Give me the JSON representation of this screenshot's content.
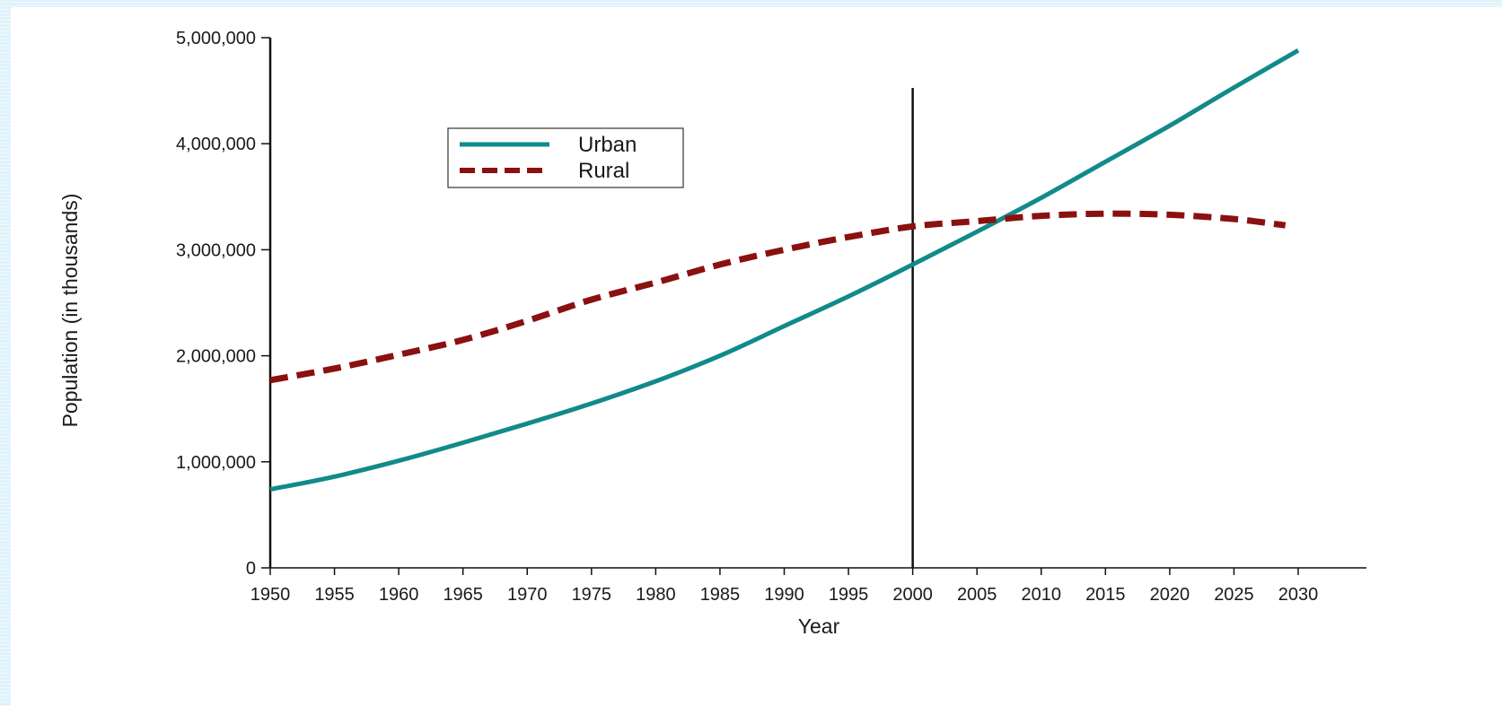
{
  "colors": {
    "urban": "#118a8a",
    "rural": "#8b1010",
    "axis": "#111111"
  },
  "chart_data": {
    "type": "line",
    "title": "",
    "xlabel": "Year",
    "ylabel": "Population (in thousands)",
    "xlim": [
      1950,
      2030
    ],
    "ylim": [
      0,
      5000000
    ],
    "x_ticks": [
      1950,
      1955,
      1960,
      1965,
      1970,
      1975,
      1980,
      1985,
      1990,
      1995,
      2000,
      2005,
      2010,
      2015,
      2020,
      2025,
      2030
    ],
    "y_ticks": [
      0,
      1000000,
      2000000,
      3000000,
      4000000,
      5000000
    ],
    "x_tick_labels": [
      "1950",
      "1955",
      "1960",
      "1965",
      "1970",
      "1975",
      "1980",
      "1985",
      "1990",
      "1995",
      "2000",
      "2005",
      "2010",
      "2015",
      "2020",
      "2025",
      "2030"
    ],
    "y_tick_labels": [
      "0",
      "1,000,000",
      "2,000,000",
      "3,000,000",
      "4,000,000",
      "5,000,000"
    ],
    "grid": false,
    "legend_position": "top-left",
    "reference_line_x": 2000,
    "series": [
      {
        "name": "Urban",
        "style": "solid",
        "x": [
          1950,
          1955,
          1960,
          1965,
          1970,
          1975,
          1980,
          1985,
          1990,
          1995,
          2000,
          2005,
          2010,
          2015,
          2020,
          2025,
          2030
        ],
        "values": [
          740000,
          860000,
          1010000,
          1180000,
          1360000,
          1550000,
          1760000,
          2000000,
          2280000,
          2560000,
          2860000,
          3170000,
          3490000,
          3830000,
          4170000,
          4530000,
          4880000
        ]
      },
      {
        "name": "Rural",
        "style": "dashed",
        "x": [
          1950,
          1955,
          1960,
          1965,
          1970,
          1975,
          1980,
          1985,
          1990,
          1995,
          2000,
          2005,
          2010,
          2015,
          2020,
          2025,
          2029
        ],
        "values": [
          1770000,
          1880000,
          2010000,
          2150000,
          2330000,
          2530000,
          2690000,
          2860000,
          3000000,
          3120000,
          3220000,
          3270000,
          3320000,
          3340000,
          3330000,
          3290000,
          3230000
        ]
      }
    ]
  }
}
